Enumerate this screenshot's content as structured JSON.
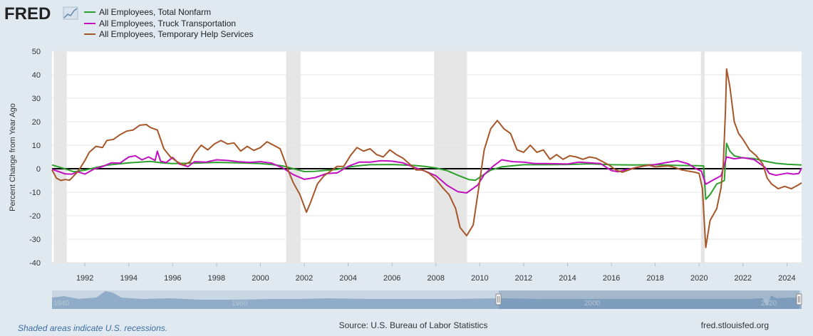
{
  "logo": {
    "text": "FRED"
  },
  "chart_data": {
    "type": "line",
    "ylabel": "Percent Change from Year Ago",
    "xlim": [
      1990.5,
      2024.67
    ],
    "ylim": [
      -40,
      50
    ],
    "yticks": [
      50,
      40,
      30,
      20,
      10,
      0,
      -10,
      -20,
      -30,
      -40
    ],
    "xticks": [
      1992,
      1994,
      1996,
      1998,
      2000,
      2002,
      2004,
      2006,
      2008,
      2010,
      2012,
      2014,
      2016,
      2018,
      2020,
      2022,
      2024
    ],
    "recessions": [
      [
        1990.58,
        1991.17
      ],
      [
        2001.17,
        2001.83
      ],
      [
        2007.92,
        2009.42
      ],
      [
        2020.08,
        2020.25
      ]
    ],
    "series": [
      {
        "name": "All Employees, Total Nonfarm",
        "color": "#2ca02c",
        "points": [
          [
            1990.5,
            1.6
          ],
          [
            1991.0,
            0.2
          ],
          [
            1991.5,
            -1.3
          ],
          [
            1992.0,
            -0.6
          ],
          [
            1992.5,
            0.5
          ],
          [
            1993.0,
            1.5
          ],
          [
            1994.0,
            2.5
          ],
          [
            1995.0,
            3.1
          ],
          [
            1995.5,
            2.5
          ],
          [
            1996.0,
            2.2
          ],
          [
            1997.0,
            2.4
          ],
          [
            1998.0,
            2.7
          ],
          [
            1999.0,
            2.5
          ],
          [
            2000.0,
            2.2
          ],
          [
            2000.5,
            1.8
          ],
          [
            2001.0,
            1.2
          ],
          [
            2001.5,
            0.0
          ],
          [
            2002.0,
            -1.2
          ],
          [
            2002.5,
            -1.1
          ],
          [
            2003.0,
            -0.7
          ],
          [
            2003.5,
            -0.3
          ],
          [
            2004.0,
            0.7
          ],
          [
            2004.5,
            1.3
          ],
          [
            2005.0,
            1.7
          ],
          [
            2006.0,
            1.8
          ],
          [
            2007.0,
            1.4
          ],
          [
            2007.5,
            1.0
          ],
          [
            2008.0,
            0.3
          ],
          [
            2008.5,
            -0.8
          ],
          [
            2009.0,
            -2.8
          ],
          [
            2009.5,
            -4.6
          ],
          [
            2009.8,
            -4.9
          ],
          [
            2010.0,
            -3.6
          ],
          [
            2010.5,
            -0.6
          ],
          [
            2011.0,
            0.8
          ],
          [
            2012.0,
            1.7
          ],
          [
            2013.0,
            1.7
          ],
          [
            2014.0,
            1.8
          ],
          [
            2015.0,
            2.1
          ],
          [
            2016.0,
            1.7
          ],
          [
            2017.0,
            1.6
          ],
          [
            2018.0,
            1.7
          ],
          [
            2019.0,
            1.4
          ],
          [
            2019.9,
            1.3
          ],
          [
            2020.2,
            1.2
          ],
          [
            2020.3,
            -13.0
          ],
          [
            2020.5,
            -11.0
          ],
          [
            2020.8,
            -6.5
          ],
          [
            2021.0,
            -5.8
          ],
          [
            2021.15,
            -5.0
          ],
          [
            2021.25,
            10.8
          ],
          [
            2021.4,
            7.5
          ],
          [
            2021.6,
            5.5
          ],
          [
            2022.0,
            4.6
          ],
          [
            2022.5,
            4.3
          ],
          [
            2023.0,
            3.2
          ],
          [
            2023.5,
            2.3
          ],
          [
            2024.0,
            1.9
          ],
          [
            2024.67,
            1.6
          ]
        ]
      },
      {
        "name": "All Employees, Truck Transportation",
        "color": "#c010c0",
        "points": [
          [
            1990.5,
            -0.2
          ],
          [
            1990.8,
            -1.2
          ],
          [
            1991.1,
            -2.2
          ],
          [
            1991.4,
            -2.3
          ],
          [
            1991.7,
            -1.4
          ],
          [
            1992.0,
            -2.3
          ],
          [
            1992.4,
            -0.2
          ],
          [
            1992.8,
            0.9
          ],
          [
            1993.2,
            2.5
          ],
          [
            1993.6,
            2.4
          ],
          [
            1994.0,
            5.0
          ],
          [
            1994.3,
            5.5
          ],
          [
            1994.6,
            3.8
          ],
          [
            1994.9,
            5.0
          ],
          [
            1995.2,
            3.5
          ],
          [
            1995.3,
            7.5
          ],
          [
            1995.45,
            3.2
          ],
          [
            1995.7,
            2.6
          ],
          [
            1996.0,
            4.8
          ],
          [
            1996.3,
            2.0
          ],
          [
            1996.7,
            0.9
          ],
          [
            1997.0,
            3.0
          ],
          [
            1997.5,
            2.8
          ],
          [
            1998.0,
            3.8
          ],
          [
            1998.5,
            3.5
          ],
          [
            1999.0,
            3.0
          ],
          [
            1999.5,
            2.7
          ],
          [
            2000.0,
            3.0
          ],
          [
            2000.5,
            2.4
          ],
          [
            2001.0,
            0.4
          ],
          [
            2001.5,
            -2.5
          ],
          [
            2002.0,
            -4.5
          ],
          [
            2002.5,
            -3.8
          ],
          [
            2003.0,
            -2.1
          ],
          [
            2003.5,
            -1.8
          ],
          [
            2004.0,
            1.0
          ],
          [
            2004.5,
            2.8
          ],
          [
            2005.0,
            2.8
          ],
          [
            2005.5,
            3.4
          ],
          [
            2006.0,
            3.2
          ],
          [
            2006.5,
            2.5
          ],
          [
            2007.0,
            0.6
          ],
          [
            2007.5,
            -1.0
          ],
          [
            2008.0,
            -3.0
          ],
          [
            2008.5,
            -7.0
          ],
          [
            2009.0,
            -9.8
          ],
          [
            2009.4,
            -10.3
          ],
          [
            2009.9,
            -7.0
          ],
          [
            2010.2,
            -2.5
          ],
          [
            2010.6,
            1.0
          ],
          [
            2011.0,
            3.8
          ],
          [
            2011.5,
            3.0
          ],
          [
            2012.0,
            2.8
          ],
          [
            2012.5,
            2.2
          ],
          [
            2013.0,
            2.2
          ],
          [
            2014.0,
            2.0
          ],
          [
            2014.5,
            2.8
          ],
          [
            2015.0,
            2.5
          ],
          [
            2015.5,
            2.2
          ],
          [
            2016.0,
            -0.8
          ],
          [
            2016.3,
            -1.3
          ],
          [
            2016.6,
            -0.6
          ],
          [
            2017.0,
            0.2
          ],
          [
            2017.5,
            1.2
          ],
          [
            2018.0,
            1.8
          ],
          [
            2018.5,
            2.6
          ],
          [
            2019.0,
            3.4
          ],
          [
            2019.5,
            2.1
          ],
          [
            2019.9,
            -0.2
          ],
          [
            2020.1,
            -1.0
          ],
          [
            2020.3,
            -6.6
          ],
          [
            2020.6,
            -5.0
          ],
          [
            2021.0,
            -3.0
          ],
          [
            2021.25,
            5.0
          ],
          [
            2021.6,
            4.2
          ],
          [
            2022.0,
            4.7
          ],
          [
            2022.5,
            3.9
          ],
          [
            2023.0,
            0.6
          ],
          [
            2023.2,
            -2.0
          ],
          [
            2023.5,
            -2.8
          ],
          [
            2024.0,
            -1.9
          ],
          [
            2024.3,
            -2.3
          ],
          [
            2024.55,
            -2.0
          ],
          [
            2024.67,
            0.3
          ]
        ]
      },
      {
        "name": "All Employees, Temporary Help Services",
        "color": "#a65628",
        "points": [
          [
            1990.5,
            -0.5
          ],
          [
            1990.7,
            -4.0
          ],
          [
            1990.9,
            -5.0
          ],
          [
            1991.1,
            -4.6
          ],
          [
            1991.3,
            -4.9
          ],
          [
            1991.6,
            -2.0
          ],
          [
            1991.8,
            0.5
          ],
          [
            1992.0,
            3.5
          ],
          [
            1992.2,
            7.0
          ],
          [
            1992.5,
            9.5
          ],
          [
            1992.8,
            9.0
          ],
          [
            1993.0,
            12.0
          ],
          [
            1993.3,
            12.5
          ],
          [
            1993.6,
            14.5
          ],
          [
            1993.9,
            16.0
          ],
          [
            1994.2,
            16.5
          ],
          [
            1994.5,
            18.5
          ],
          [
            1994.8,
            18.8
          ],
          [
            1995.0,
            17.5
          ],
          [
            1995.3,
            16.5
          ],
          [
            1995.6,
            8.5
          ],
          [
            1995.9,
            5.0
          ],
          [
            1996.2,
            3.0
          ],
          [
            1996.5,
            1.5
          ],
          [
            1996.8,
            3.0
          ],
          [
            1997.0,
            6.5
          ],
          [
            1997.3,
            10.0
          ],
          [
            1997.6,
            8.0
          ],
          [
            1997.9,
            10.5
          ],
          [
            1998.2,
            12.0
          ],
          [
            1998.5,
            10.5
          ],
          [
            1998.8,
            11.0
          ],
          [
            1999.1,
            7.5
          ],
          [
            1999.4,
            9.5
          ],
          [
            1999.7,
            7.8
          ],
          [
            2000.0,
            9.0
          ],
          [
            2000.3,
            11.5
          ],
          [
            2000.6,
            10.0
          ],
          [
            2000.9,
            8.5
          ],
          [
            2001.1,
            3.5
          ],
          [
            2001.3,
            -1.5
          ],
          [
            2001.5,
            -6.0
          ],
          [
            2001.8,
            -11.0
          ],
          [
            2002.1,
            -18.5
          ],
          [
            2002.3,
            -14.0
          ],
          [
            2002.6,
            -6.5
          ],
          [
            2002.9,
            -3.0
          ],
          [
            2003.2,
            -1.0
          ],
          [
            2003.5,
            1.0
          ],
          [
            2003.8,
            1.0
          ],
          [
            2004.1,
            5.5
          ],
          [
            2004.4,
            9.0
          ],
          [
            2004.7,
            7.5
          ],
          [
            2005.0,
            8.5
          ],
          [
            2005.3,
            6.0
          ],
          [
            2005.6,
            5.0
          ],
          [
            2005.9,
            8.0
          ],
          [
            2006.2,
            6.0
          ],
          [
            2006.5,
            4.5
          ],
          [
            2006.8,
            2.0
          ],
          [
            2007.1,
            -0.5
          ],
          [
            2007.4,
            -0.5
          ],
          [
            2007.7,
            -2.0
          ],
          [
            2008.0,
            -4.5
          ],
          [
            2008.3,
            -8.0
          ],
          [
            2008.6,
            -11.0
          ],
          [
            2008.9,
            -17.0
          ],
          [
            2009.1,
            -25.0
          ],
          [
            2009.4,
            -28.5
          ],
          [
            2009.7,
            -24.0
          ],
          [
            2010.0,
            -5.0
          ],
          [
            2010.2,
            8.0
          ],
          [
            2010.5,
            17.0
          ],
          [
            2010.8,
            20.5
          ],
          [
            2011.1,
            17.0
          ],
          [
            2011.4,
            15.0
          ],
          [
            2011.7,
            8.0
          ],
          [
            2012.0,
            7.0
          ],
          [
            2012.3,
            10.0
          ],
          [
            2012.6,
            7.0
          ],
          [
            2012.9,
            8.0
          ],
          [
            2013.2,
            4.0
          ],
          [
            2013.5,
            6.0
          ],
          [
            2013.8,
            4.0
          ],
          [
            2014.1,
            5.5
          ],
          [
            2014.4,
            5.0
          ],
          [
            2014.7,
            4.0
          ],
          [
            2015.0,
            5.0
          ],
          [
            2015.3,
            4.5
          ],
          [
            2015.6,
            3.0
          ],
          [
            2015.9,
            1.5
          ],
          [
            2016.2,
            -0.5
          ],
          [
            2016.5,
            -1.5
          ],
          [
            2016.8,
            -0.5
          ],
          [
            2017.1,
            0.5
          ],
          [
            2017.4,
            1.0
          ],
          [
            2017.7,
            1.5
          ],
          [
            2018.0,
            0.8
          ],
          [
            2018.3,
            1.0
          ],
          [
            2018.6,
            1.2
          ],
          [
            2018.9,
            0.5
          ],
          [
            2019.2,
            -0.5
          ],
          [
            2019.5,
            -1.0
          ],
          [
            2019.8,
            -1.5
          ],
          [
            2020.0,
            -2.0
          ],
          [
            2020.15,
            -8.5
          ],
          [
            2020.3,
            -33.5
          ],
          [
            2020.5,
            -22.0
          ],
          [
            2020.8,
            -17.0
          ],
          [
            2021.0,
            -8.0
          ],
          [
            2021.1,
            2.0
          ],
          [
            2021.2,
            25.0
          ],
          [
            2021.25,
            42.5
          ],
          [
            2021.4,
            35.0
          ],
          [
            2021.6,
            20.0
          ],
          [
            2021.8,
            15.0
          ],
          [
            2022.0,
            12.5
          ],
          [
            2022.3,
            8.0
          ],
          [
            2022.6,
            5.5
          ],
          [
            2022.9,
            2.0
          ],
          [
            2023.1,
            -4.0
          ],
          [
            2023.3,
            -6.5
          ],
          [
            2023.6,
            -8.5
          ],
          [
            2023.9,
            -7.5
          ],
          [
            2024.2,
            -8.5
          ],
          [
            2024.5,
            -7.0
          ],
          [
            2024.67,
            -6.0
          ]
        ]
      }
    ]
  },
  "navigator": {
    "labels": [
      "1940",
      "1960",
      "2000",
      "2020"
    ]
  },
  "footer": {
    "note": "Shaded areas indicate U.S. recessions.",
    "source": "Source: U.S. Bureau of Labor Statistics",
    "site": "fred.stlouisfed.org"
  }
}
